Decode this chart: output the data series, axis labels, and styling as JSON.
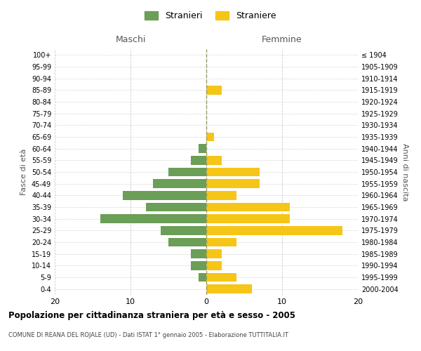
{
  "age_groups": [
    "0-4",
    "5-9",
    "10-14",
    "15-19",
    "20-24",
    "25-29",
    "30-34",
    "35-39",
    "40-44",
    "45-49",
    "50-54",
    "55-59",
    "60-64",
    "65-69",
    "70-74",
    "75-79",
    "80-84",
    "85-89",
    "90-94",
    "95-99",
    "100+"
  ],
  "birth_years": [
    "2000-2004",
    "1995-1999",
    "1990-1994",
    "1985-1989",
    "1980-1984",
    "1975-1979",
    "1970-1974",
    "1965-1969",
    "1960-1964",
    "1955-1959",
    "1950-1954",
    "1945-1949",
    "1940-1944",
    "1935-1939",
    "1930-1934",
    "1925-1929",
    "1920-1924",
    "1915-1919",
    "1910-1914",
    "1905-1909",
    "≤ 1904"
  ],
  "maschi": [
    0,
    1,
    2,
    2,
    5,
    6,
    14,
    8,
    11,
    7,
    5,
    2,
    1,
    0,
    0,
    0,
    0,
    0,
    0,
    0,
    0
  ],
  "femmine": [
    6,
    4,
    2,
    2,
    4,
    18,
    11,
    11,
    4,
    7,
    7,
    2,
    0,
    1,
    0,
    0,
    0,
    2,
    0,
    0,
    0
  ],
  "color_maschi": "#6b9e56",
  "color_femmine": "#f5c518",
  "title": "Popolazione per cittadinanza straniera per età e sesso - 2005",
  "subtitle": "COMUNE DI REANA DEL ROJALE (UD) - Dati ISTAT 1° gennaio 2005 - Elaborazione TUTTITALIA.IT",
  "ylabel_left": "Fasce di età",
  "ylabel_right": "Anni di nascita",
  "xlabel_left": "Maschi",
  "xlabel_right": "Femmine",
  "legend_stranieri": "Stranieri",
  "legend_straniere": "Straniere",
  "xlim": 20,
  "bg_color": "#ffffff",
  "grid_color": "#cccccc",
  "bar_height": 0.75
}
